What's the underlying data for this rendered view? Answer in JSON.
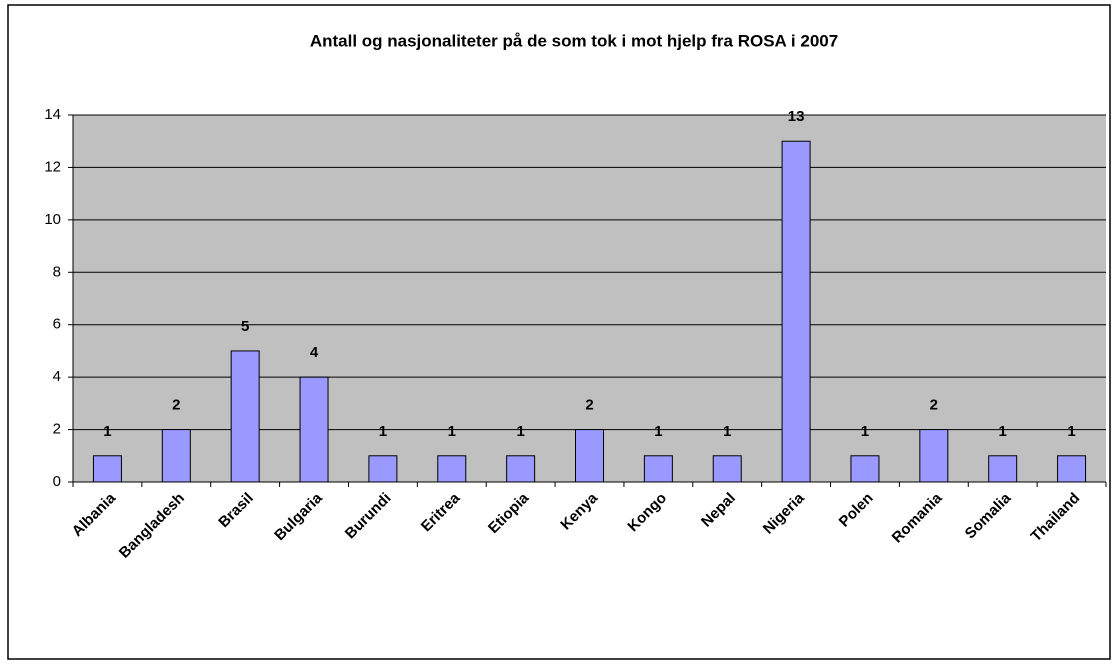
{
  "chart_data": {
    "type": "bar",
    "title": "Antall og nasjonaliteter på de som tok i mot hjelp fra ROSA i 2007",
    "categories": [
      "Albania",
      "Bangladesh",
      "Brasil",
      "Bulgaria",
      "Burundi",
      "Eritrea",
      "Etiopia",
      "Kenya",
      "Kongo",
      "Nepal",
      "Nigeria",
      "Polen",
      "Romania",
      "Somalia",
      "Thailand"
    ],
    "values": [
      1,
      2,
      5,
      4,
      1,
      1,
      1,
      2,
      1,
      1,
      13,
      1,
      2,
      1,
      1
    ],
    "color": "#9999ff",
    "ylim": [
      0,
      14
    ],
    "yticks": [
      0,
      2,
      4,
      6,
      8,
      10,
      12,
      14
    ],
    "grid": true
  }
}
